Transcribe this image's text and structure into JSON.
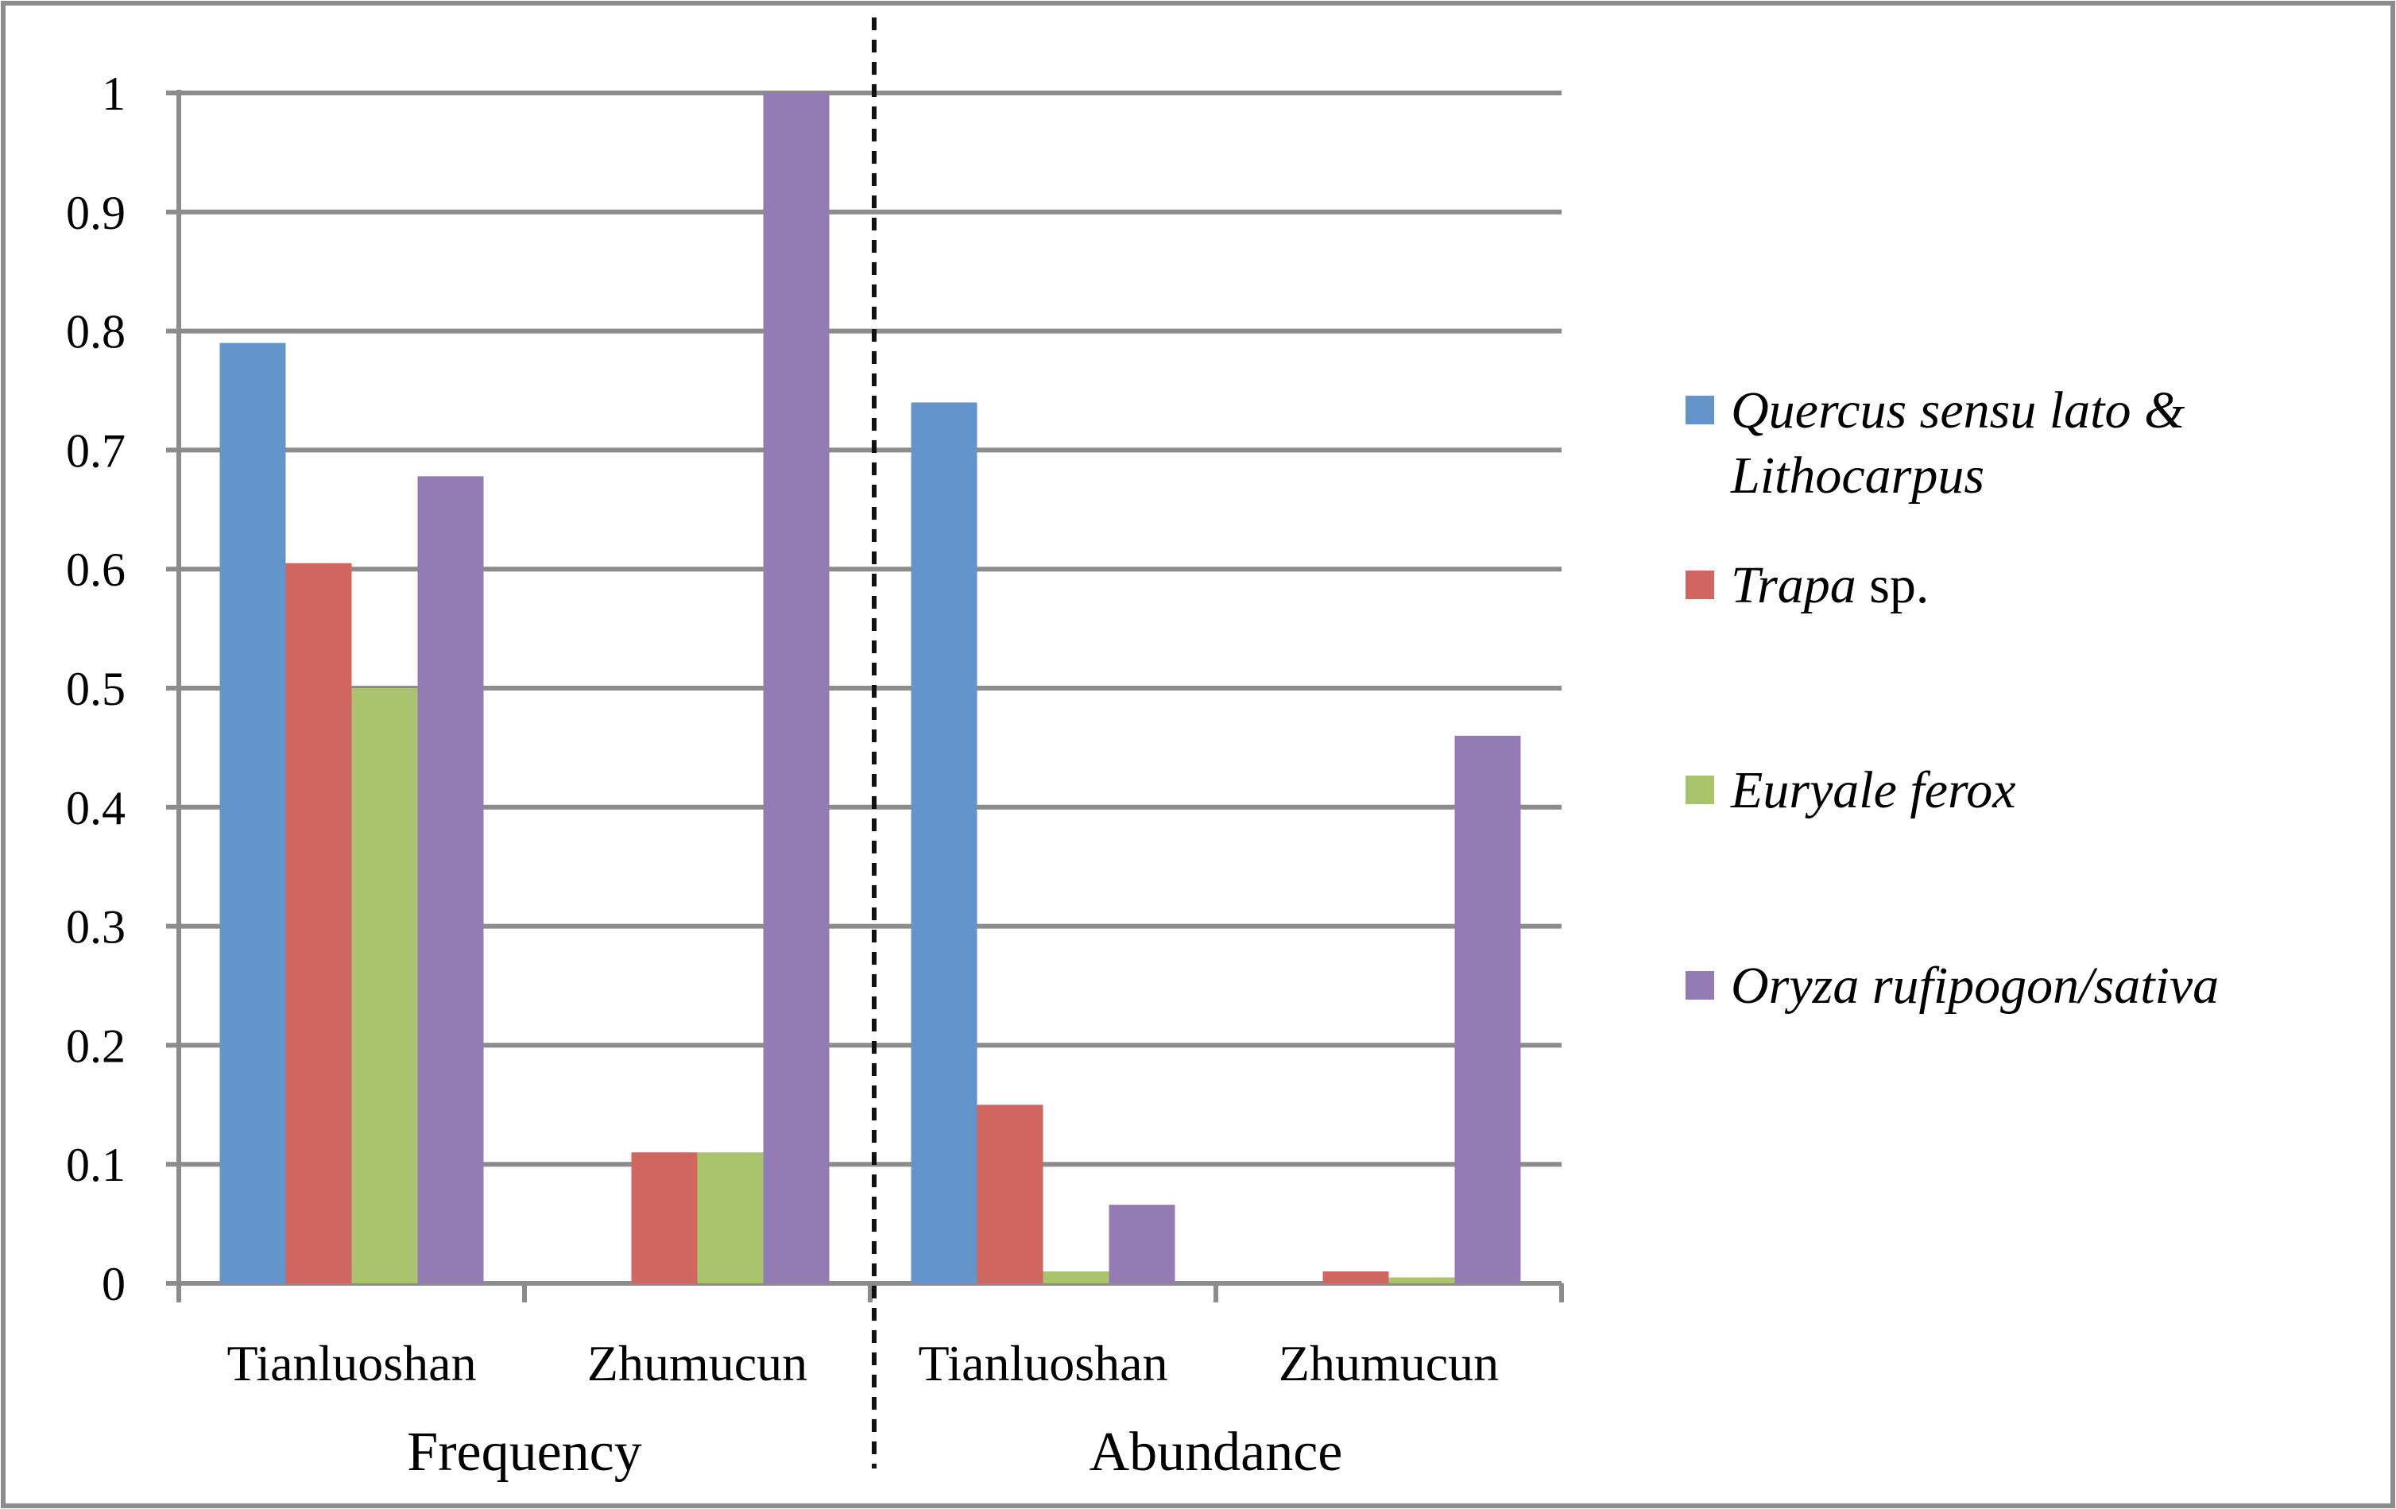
{
  "chart_data": {
    "type": "bar",
    "title": "",
    "xlabel": "",
    "ylabel": "",
    "ylim": [
      0,
      1
    ],
    "y_ticks": [
      "0",
      "0.1",
      "0.2",
      "0.3",
      "0.4",
      "0.5",
      "0.6",
      "0.7",
      "0.8",
      "0.9",
      "1"
    ],
    "grid": true,
    "legend_position": "right",
    "groups": [
      {
        "label": "Frequency",
        "categories": [
          "Tianluoshan",
          "Zhumucun"
        ]
      },
      {
        "label": "Abundance",
        "categories": [
          "Tianluoshan",
          "Zhumucun"
        ]
      }
    ],
    "series": [
      {
        "legend_lines": [
          [
            {
              "text": "Quercus sensu lato",
              "italic": true
            },
            {
              "text": " &",
              "italic": true
            }
          ],
          [
            {
              "text": "Lithocarpus",
              "italic": true
            }
          ]
        ],
        "color": "#6495ca",
        "values": [
          [
            0.79,
            0.0
          ],
          [
            0.74,
            0.0
          ]
        ]
      },
      {
        "legend_lines": [
          [
            {
              "text": "Trapa",
              "italic": true
            },
            {
              "text": " sp.",
              "italic": false
            }
          ]
        ],
        "color": "#d0665f",
        "values": [
          [
            0.605,
            0.11
          ],
          [
            0.15,
            0.01
          ]
        ]
      },
      {
        "legend_lines": [
          [
            {
              "text": "Euryale ferox",
              "italic": true
            }
          ]
        ],
        "color": "#a9c46c",
        "values": [
          [
            0.5,
            0.11
          ],
          [
            0.01,
            0.005
          ]
        ]
      },
      {
        "legend_lines": [
          [
            {
              "text": "Oryza rufipogon/sativa",
              "italic": true
            }
          ]
        ],
        "color": "#937cb4",
        "values": [
          [
            0.678,
            1.0
          ],
          [
            0.066,
            0.46
          ]
        ]
      }
    ]
  }
}
